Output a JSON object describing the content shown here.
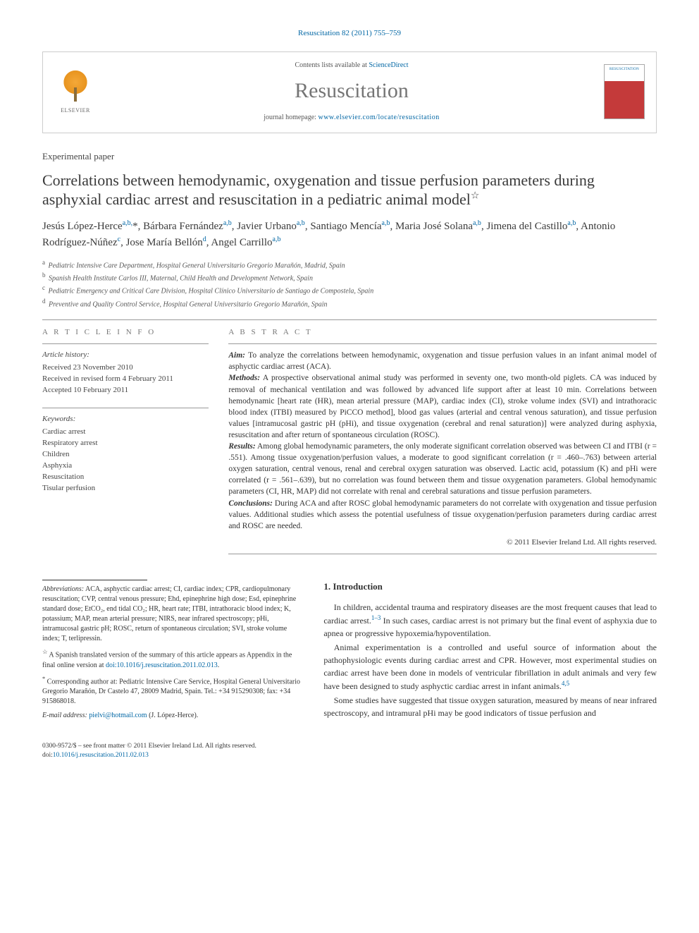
{
  "header": {
    "citation": "Resuscitation 82 (2011) 755–759",
    "contents_prefix": "Contents lists available at ",
    "contents_link": "ScienceDirect",
    "journal_title": "Resuscitation",
    "homepage_prefix": "journal homepage: ",
    "homepage_url": "www.elsevier.com/locate/resuscitation",
    "publisher_label": "ELSEVIER",
    "cover_label": "RESUSCITATION"
  },
  "article": {
    "type": "Experimental paper",
    "title": "Correlations between hemodynamic, oxygenation and tissue perfusion parameters during asphyxial cardiac arrest and resuscitation in a pediatric animal model",
    "title_note_mark": "☆"
  },
  "authors_html": "Jesús López-Herce<sup>a,b,</sup>*, Bárbara Fernández<sup>a,b</sup>, Javier Urbano<sup>a,b</sup>, Santiago Mencía<sup>a,b</sup>, Maria José Solana<sup>a,b</sup>, Jimena del Castillo<sup>a,b</sup>, Antonio Rodríguez-Núñez<sup>c</sup>, Jose María Bellón<sup>d</sup>, Angel Carrillo<sup>a,b</sup>",
  "affiliations": [
    {
      "key": "a",
      "text": "Pediatric Intensive Care Department, Hospital General Universitario Gregorio Marañón, Madrid, Spain"
    },
    {
      "key": "b",
      "text": "Spanish Health Institute Carlos III, Maternal, Child Health and Development Network, Spain"
    },
    {
      "key": "c",
      "text": "Pediatric Emergency and Critical Care Division, Hospital Clínico Universitario de Santiago de Compostela, Spain"
    },
    {
      "key": "d",
      "text": "Preventive and Quality Control Service, Hospital General Universitario Gregorio Marañón, Spain"
    }
  ],
  "articleinfo": {
    "head": "A R T I C L E  I N F O",
    "history_label": "Article history:",
    "received": "Received 23 November 2010",
    "revised": "Received in revised form 4 February 2011",
    "accepted": "Accepted 10 February 2011",
    "keywords_label": "Keywords:",
    "keywords": [
      "Cardiac arrest",
      "Respiratory arrest",
      "Children",
      "Asphyxia",
      "Resuscitation",
      "Tisular perfusion"
    ]
  },
  "abstract": {
    "head": "A B S T R A C T",
    "aim_label": "Aim:",
    "aim": " To analyze the correlations between hemodynamic, oxygenation and tissue perfusion values in an infant animal model of asphyctic cardiac arrest (ACA).",
    "methods_label": "Methods:",
    "methods": " A prospective observational animal study was performed in seventy one, two month-old piglets. CA was induced by removal of mechanical ventilation and was followed by advanced life support after at least 10 min. Correlations between hemodynamic [heart rate (HR), mean arterial pressure (MAP), cardiac index (CI), stroke volume index (SVI) and intrathoracic blood index (ITBI) measured by PiCCO method], blood gas values (arterial and central venous saturation), and tissue perfusion values [intramucosal gastric pH (pHi), and tissue oxygenation (cerebral and renal saturation)] were analyzed during asphyxia, resuscitation and after return of spontaneous circulation (ROSC).",
    "results_label": "Results:",
    "results": " Among global hemodynamic parameters, the only moderate significant correlation observed was between CI and ITBI (r = .551). Among tissue oxygenation/perfusion values, a moderate to good significant correlation (r = .460–.763) between arterial oxygen saturation, central venous, renal and cerebral oxygen saturation was observed. Lactic acid, potassium (K) and pHi were correlated (r = .561–.639), but no correlation was found between them and tissue oxygenation parameters. Global hemodynamic parameters (CI, HR, MAP) did not correlate with renal and cerebral saturations and tissue perfusion parameters.",
    "conclusions_label": "Conclusions:",
    "conclusions": " During ACA and after ROSC global hemodynamic parameters do not correlate with oxygenation and tissue perfusion values. Additional studies which assess the potential usefulness of tissue oxygenation/perfusion parameters during cardiac arrest and ROSC are needed.",
    "copyright": "© 2011 Elsevier Ireland Ltd. All rights reserved."
  },
  "footnotes": {
    "abbrev_label": "Abbreviations:",
    "abbrev": " ACA, asphyctic cardiac arrest; CI, cardiac index; CPR, cardiopulmonary resuscitation; CVP, central venous pressure; Ehd, epinephrine high dose; Esd, epinephrine standard dose; EtCO₂, end tidal CO₂; HR, heart rate; ITBI, intrathoracic blood index; K, potassium; MAP, mean arterial pressure; NIRS, near infrared spectroscopy; pHi, intramucosal gastric pH; ROSC, return of spontaneous circulation; SVI, stroke volume index; T, terlipressin.",
    "star_mark": "☆",
    "star_text": " A Spanish translated version of the summary of this article appears as Appendix in the final online version at ",
    "star_doi": "doi:10.1016/j.resuscitation.2011.02.013",
    "corr_mark": "*",
    "corr_text": " Corresponding author at: Pediatric Intensive Care Service, Hospital General Universitario Gregorio Marañón, Dr Castelo 47, 28009 Madrid, Spain. Tel.: +34 915290308; fax: +34 915868018.",
    "email_label": "E-mail address: ",
    "email": "pielvi@hotmail.com",
    "email_who": " (J. López-Herce)."
  },
  "intro": {
    "head": "1.  Introduction",
    "p1": "In children, accidental trauma and respiratory diseases are the most frequent causes that lead to cardiac arrest.",
    "p1_ref": "1–3",
    "p1b": " In such cases, cardiac arrest is not primary but the final event of asphyxia due to apnea or progressive hypoxemia/hypoventilation.",
    "p2": "Animal experimentation is a controlled and useful source of information about the pathophysiologic events during cardiac arrest and CPR. However, most experimental studies on cardiac arrest have been done in models of ventricular fibrillation in adult animals and very few have been designed to study asphyctic cardiac arrest in infant animals.",
    "p2_ref": "4,5",
    "p3": "Some studies have suggested that tissue oxygen saturation, measured by means of near infrared spectroscopy, and intramural pHi may be good indicators of tissue perfusion and"
  },
  "footer": {
    "line1": "0300-9572/$ – see front matter © 2011 Elsevier Ireland Ltd. All rights reserved.",
    "doi_label": "doi:",
    "doi": "10.1016/j.resuscitation.2011.02.013"
  },
  "colors": {
    "link": "#0066a4",
    "title_gray": "#757575",
    "text": "#333333",
    "rule": "#999999"
  }
}
